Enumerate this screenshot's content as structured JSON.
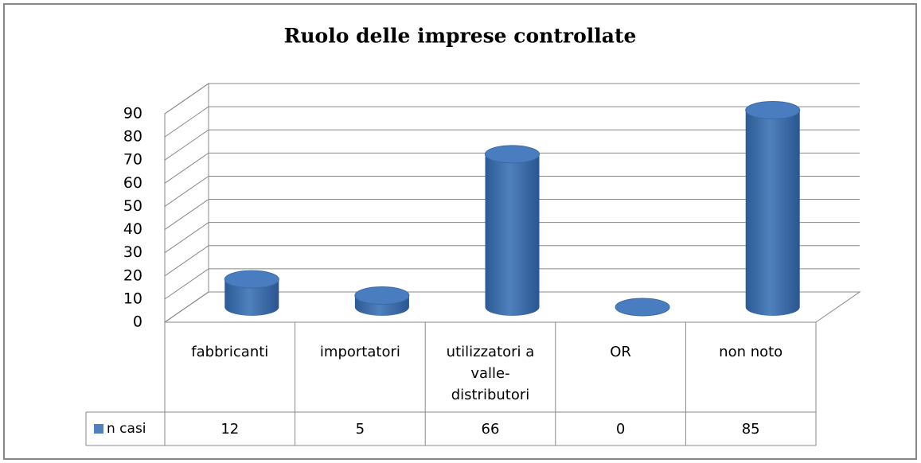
{
  "chart_data": {
    "type": "bar3d",
    "title": "Ruolo delle imprese controllate",
    "categories": [
      "fabbricanti",
      "importatori",
      "utilizzatori a valle-distributori",
      "OR",
      "non noto"
    ],
    "series": [
      {
        "name": "n casi",
        "color": "#4f81bd",
        "values": [
          12,
          5,
          66,
          0,
          85
        ]
      }
    ],
    "ylim": [
      0,
      90
    ],
    "yticks": [
      0,
      10,
      20,
      30,
      40,
      50,
      60,
      70,
      80,
      90
    ],
    "grid": true
  }
}
